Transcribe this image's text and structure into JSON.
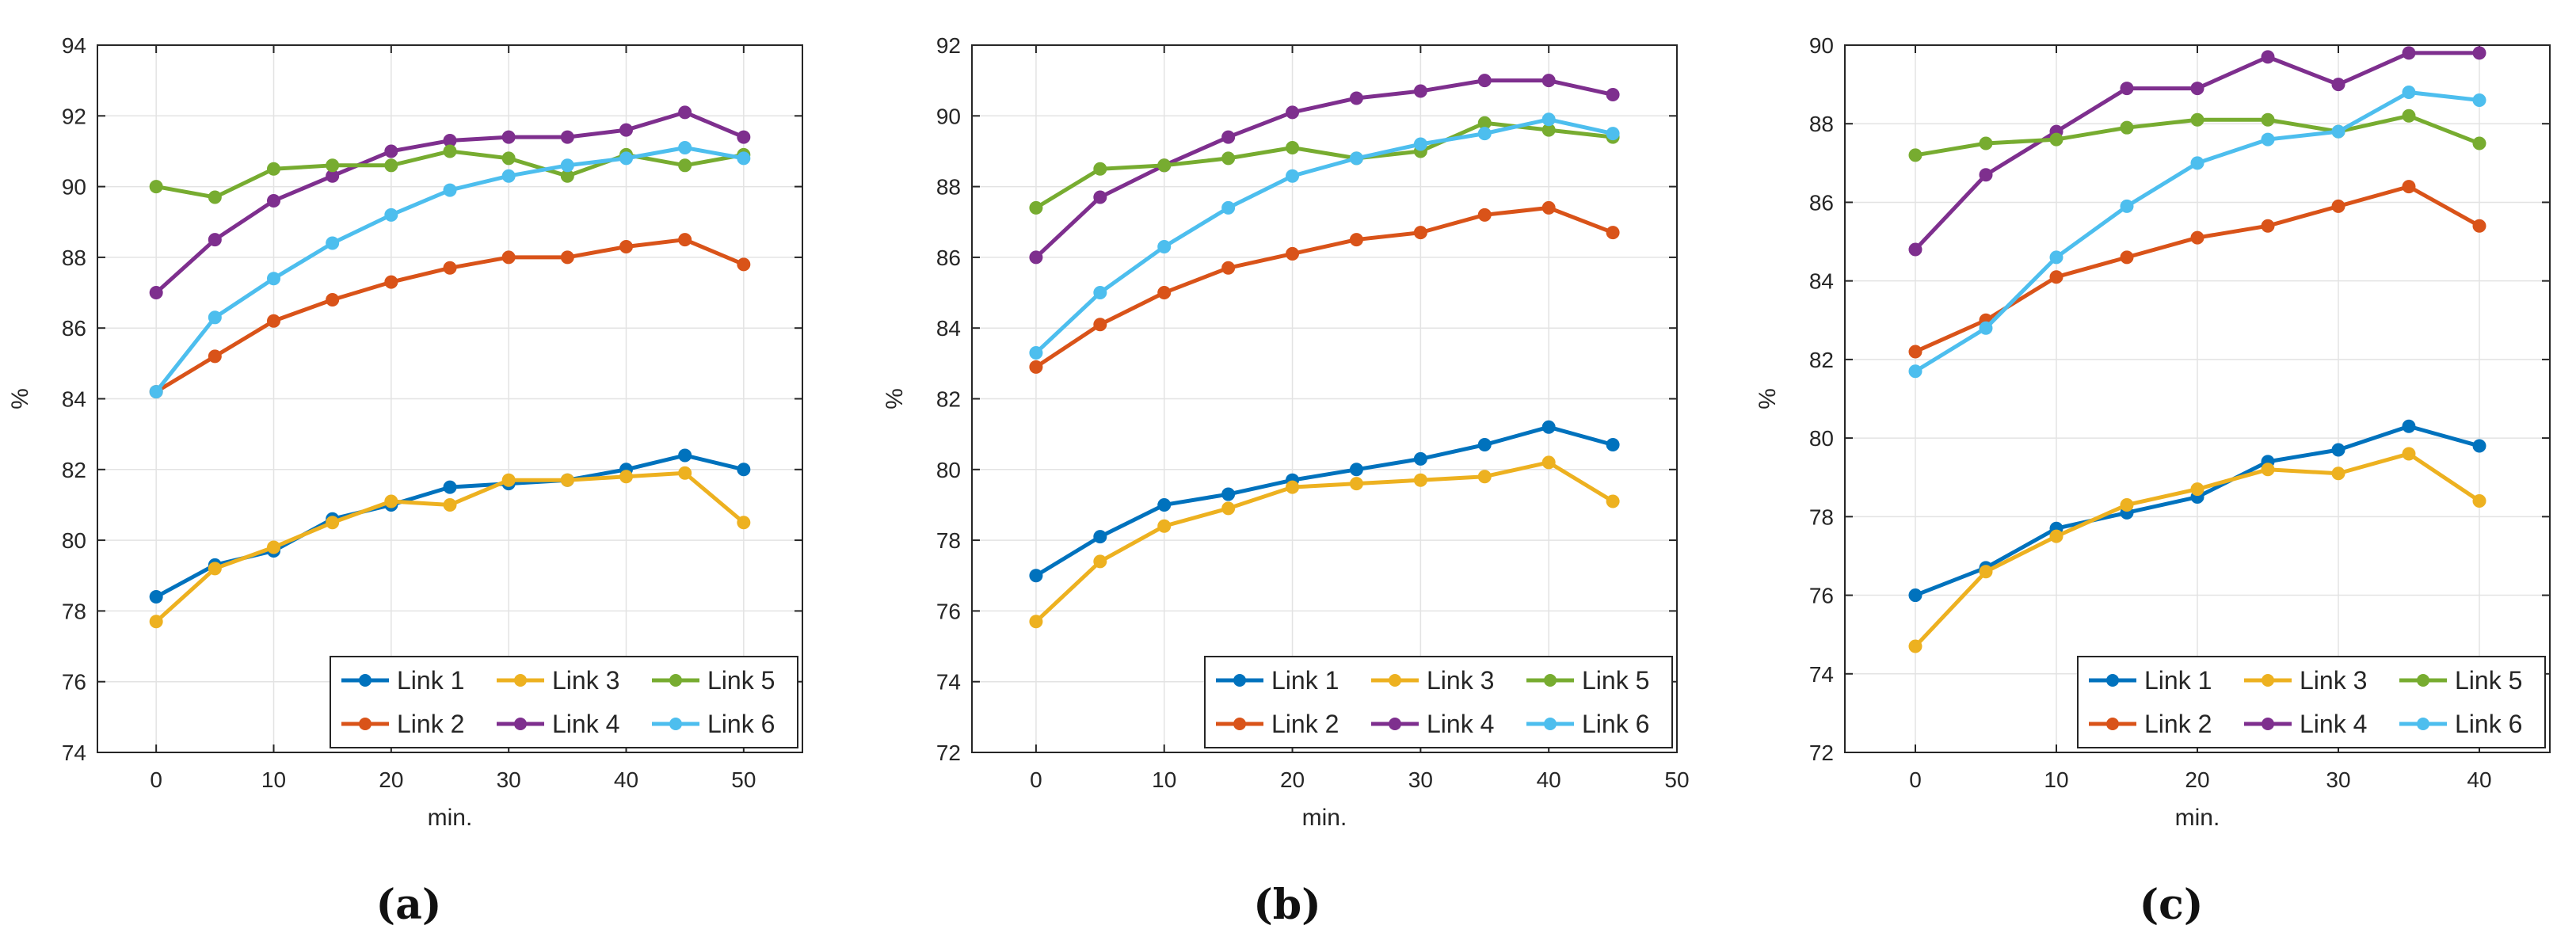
{
  "colors": {
    "Link 1": "#0072BD",
    "Link 2": "#D95319",
    "Link 3": "#EDB120",
    "Link 4": "#7E2F8E",
    "Link 5": "#77AC30",
    "Link 6": "#4DBEEE",
    "grid": "#e3e3e3",
    "axis": "#262626"
  },
  "chart_data": [
    {
      "type": "line",
      "caption": "(a)",
      "xlabel": "min.",
      "ylabel": "%",
      "xlim": [
        -5,
        55
      ],
      "ylim": [
        74,
        94
      ],
      "xticks": [
        0,
        10,
        20,
        30,
        40,
        50
      ],
      "yticks": [
        74,
        76,
        78,
        80,
        82,
        84,
        86,
        88,
        90,
        92,
        94
      ],
      "grid": true,
      "legend_position": "bottom-right",
      "x": [
        0,
        5,
        10,
        15,
        20,
        25,
        30,
        35,
        40,
        45,
        50
      ],
      "series": [
        {
          "name": "Link 1",
          "values": [
            78.4,
            79.3,
            79.7,
            80.6,
            81.0,
            81.5,
            81.6,
            81.7,
            82.0,
            82.4,
            82.0
          ]
        },
        {
          "name": "Link 2",
          "values": [
            84.2,
            85.2,
            86.2,
            86.8,
            87.3,
            87.7,
            88.0,
            88.0,
            88.3,
            88.5,
            87.8
          ]
        },
        {
          "name": "Link 3",
          "values": [
            77.7,
            79.2,
            79.8,
            80.5,
            81.1,
            81.0,
            81.7,
            81.7,
            81.8,
            81.9,
            80.5
          ]
        },
        {
          "name": "Link 4",
          "values": [
            87.0,
            88.5,
            89.6,
            90.3,
            91.0,
            91.3,
            91.4,
            91.4,
            91.6,
            92.1,
            91.4
          ]
        },
        {
          "name": "Link 5",
          "values": [
            90.0,
            89.7,
            90.5,
            90.6,
            90.6,
            91.0,
            90.8,
            90.3,
            90.9,
            90.6,
            90.9
          ]
        },
        {
          "name": "Link 6",
          "values": [
            84.2,
            86.3,
            87.4,
            88.4,
            89.2,
            89.9,
            90.3,
            90.6,
            90.8,
            91.1,
            90.8
          ]
        }
      ]
    },
    {
      "type": "line",
      "caption": "(b)",
      "xlabel": "min.",
      "ylabel": "%",
      "xlim": [
        -5,
        50
      ],
      "ylim": [
        72,
        92
      ],
      "xticks": [
        0,
        10,
        20,
        30,
        40,
        50
      ],
      "yticks": [
        72,
        74,
        76,
        78,
        80,
        82,
        84,
        86,
        88,
        90,
        92
      ],
      "grid": true,
      "legend_position": "bottom-right",
      "x": [
        0,
        5,
        10,
        15,
        20,
        25,
        30,
        35,
        40,
        45
      ],
      "series": [
        {
          "name": "Link 1",
          "values": [
            77.0,
            78.1,
            79.0,
            79.3,
            79.7,
            80.0,
            80.3,
            80.7,
            81.2,
            80.7
          ]
        },
        {
          "name": "Link 2",
          "values": [
            82.9,
            84.1,
            85.0,
            85.7,
            86.1,
            86.5,
            86.7,
            87.2,
            87.4,
            86.7
          ]
        },
        {
          "name": "Link 3",
          "values": [
            75.7,
            77.4,
            78.4,
            78.9,
            79.5,
            79.6,
            79.7,
            79.8,
            80.2,
            79.1
          ]
        },
        {
          "name": "Link 4",
          "values": [
            86.0,
            87.7,
            88.6,
            89.4,
            90.1,
            90.5,
            90.7,
            91.0,
            91.0,
            90.6
          ]
        },
        {
          "name": "Link 5",
          "values": [
            87.4,
            88.5,
            88.6,
            88.8,
            89.1,
            88.8,
            89.0,
            89.8,
            89.6,
            89.4
          ]
        },
        {
          "name": "Link 6",
          "values": [
            83.3,
            85.0,
            86.3,
            87.4,
            88.3,
            88.8,
            89.2,
            89.5,
            89.9,
            89.5
          ]
        }
      ]
    },
    {
      "type": "line",
      "caption": "(c)",
      "xlabel": "min.",
      "ylabel": "%",
      "xlim": [
        -5,
        45
      ],
      "ylim": [
        72,
        90
      ],
      "xticks": [
        0,
        10,
        20,
        30,
        40
      ],
      "yticks": [
        72,
        74,
        76,
        78,
        80,
        82,
        84,
        86,
        88,
        90
      ],
      "grid": true,
      "legend_position": "bottom-right",
      "x": [
        0,
        5,
        10,
        15,
        20,
        25,
        30,
        35,
        40
      ],
      "series": [
        {
          "name": "Link 1",
          "values": [
            76.0,
            76.7,
            77.7,
            78.1,
            78.5,
            79.4,
            79.7,
            80.3,
            79.8
          ]
        },
        {
          "name": "Link 2",
          "values": [
            82.2,
            83.0,
            84.1,
            84.6,
            85.1,
            85.4,
            85.9,
            86.4,
            85.4
          ]
        },
        {
          "name": "Link 3",
          "values": [
            74.7,
            76.6,
            77.5,
            78.3,
            78.7,
            79.2,
            79.1,
            79.6,
            78.4
          ]
        },
        {
          "name": "Link 4",
          "values": [
            84.8,
            86.7,
            87.8,
            88.9,
            88.9,
            89.7,
            89.0,
            89.8,
            89.8
          ]
        },
        {
          "name": "Link 5",
          "values": [
            87.2,
            87.5,
            87.6,
            87.9,
            88.1,
            88.1,
            87.8,
            88.2,
            87.5
          ]
        },
        {
          "name": "Link 6",
          "values": [
            81.7,
            82.8,
            84.6,
            85.9,
            87.0,
            87.6,
            87.8,
            88.8,
            88.6
          ]
        }
      ]
    }
  ]
}
